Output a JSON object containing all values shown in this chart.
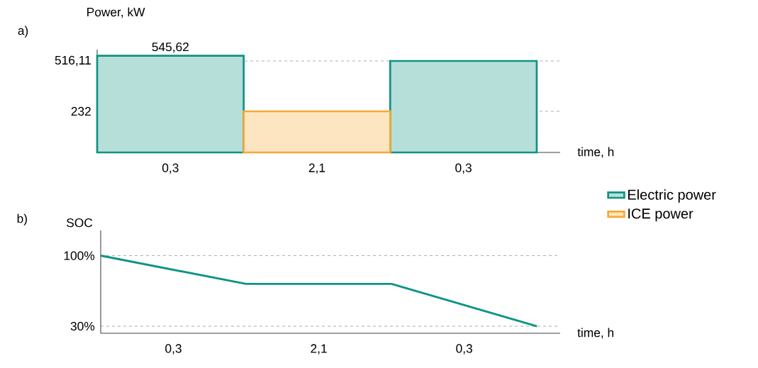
{
  "chart_data": [
    {
      "type": "bar",
      "title": "a)",
      "xlabel": "time, h",
      "ylabel": "Power, kW",
      "ylim": [
        0,
        580
      ],
      "categories": [
        "0,3",
        "2,1",
        "0,3"
      ],
      "yticks": [
        232,
        {
          "value": 516.11,
          "label": "516,11"
        }
      ],
      "legend": "right",
      "series": [
        {
          "name": "Electric power",
          "color": "#0e9384",
          "values": [
            545.62,
            null,
            516.11
          ],
          "value_labels": [
            "545,62",
            null,
            null
          ]
        },
        {
          "name": "ICE power",
          "color": "#f7a833",
          "values": [
            null,
            232,
            null
          ]
        }
      ],
      "ref_lines": [
        {
          "axis": "y",
          "value": 516.11,
          "color": "#666666",
          "line_style": "dashed"
        },
        {
          "axis": "y",
          "value": 232,
          "color": "#666666",
          "line_style": "dashed"
        }
      ]
    },
    {
      "type": "line",
      "title": "b)",
      "xlabel": "time, h",
      "ylabel": "SOC",
      "ylim": [
        23,
        125
      ],
      "categories": [
        null,
        null,
        null,
        null
      ],
      "yticks": [
        {
          "value": 30,
          "label": "30%"
        },
        {
          "value": 100,
          "label": "100%"
        }
      ],
      "series": [
        {
          "color": "#0e9384",
          "values": [
            100,
            72,
            72,
            30
          ]
        }
      ],
      "ref_lines": [
        {
          "axis": "y",
          "value": 100,
          "color": "#666666",
          "line_style": "dashed"
        },
        {
          "axis": "y",
          "value": 30,
          "color": "#666666",
          "line_style": "dashed"
        }
      ],
      "annotations": [
        "0,3",
        "2,1",
        "0,3"
      ]
    }
  ]
}
